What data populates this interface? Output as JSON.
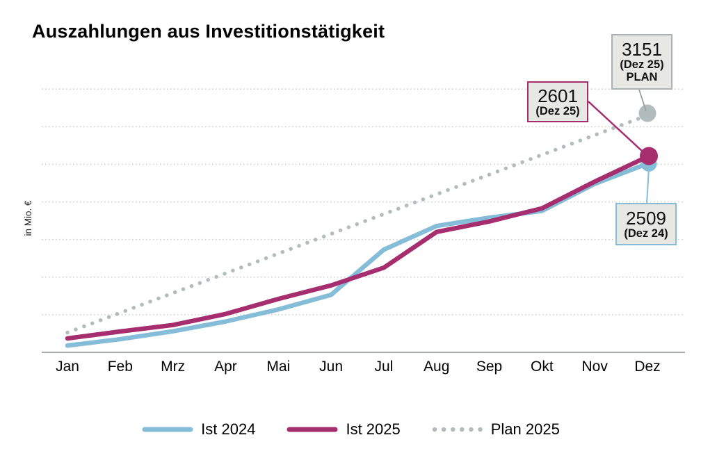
{
  "title": "Auszahlungen aus Investitionstätigkeit",
  "chart_data": {
    "type": "line",
    "title": "Auszahlungen aus Investitionstätigkeit",
    "xlabel": "",
    "ylabel": "in Mio. €",
    "categories": [
      "Jan",
      "Feb",
      "Mrz",
      "Apr",
      "Mai",
      "Jun",
      "Jul",
      "Aug",
      "Sep",
      "Okt",
      "Nov",
      "Dez"
    ],
    "ylim": [
      0,
      3700
    ],
    "gridline_values": [
      500,
      1000,
      1500,
      2000,
      2500,
      3000,
      3500
    ],
    "grid": "horizontal-dotted",
    "legend_position": "bottom",
    "axis_color": "#a5adab",
    "gridline_color": "#cbd1cf",
    "series": [
      {
        "name": "Ist 2024",
        "style": "solid",
        "color": "#85bcd8",
        "end_marker": true,
        "values": [
          90,
          175,
          280,
          410,
          570,
          765,
          1365,
          1680,
          1790,
          1880,
          2240,
          2509
        ]
      },
      {
        "name": "Ist 2025",
        "style": "solid",
        "color": "#a62d6e",
        "end_marker": true,
        "values": [
          185,
          277,
          363,
          510,
          710,
          890,
          1125,
          1600,
          1740,
          1915,
          2270,
          2601
        ]
      },
      {
        "name": "Plan 2025",
        "style": "dotted",
        "color": "#b3bcbc",
        "end_marker": true,
        "values": [
          263,
          525,
          788,
          1050,
          1313,
          1575,
          1838,
          2101,
          2363,
          2626,
          2888,
          3151
        ]
      }
    ]
  },
  "annotations": {
    "plan": {
      "value": "3151",
      "period": "(Dez 25)",
      "tag": "PLAN",
      "border_color": "#a9b3b2",
      "leader_color": "#98a0a0"
    },
    "ist2025": {
      "value": "2601",
      "period": "(Dez 25)",
      "border_color": "#a62d6e",
      "leader_color": "#a62d6e"
    },
    "ist2024": {
      "value": "2509",
      "period": "(Dez 24)",
      "border_color": "#85bcd8",
      "leader_color": "#85bcd8"
    }
  }
}
